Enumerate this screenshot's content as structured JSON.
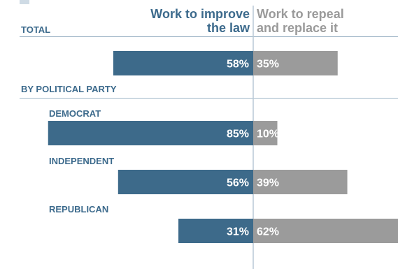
{
  "header": {
    "improve_label_line1": "Work to improve",
    "improve_label_line2": "the law",
    "repeal_label_line1": "Work to repeal",
    "repeal_label_line2": "and replace it"
  },
  "sections": {
    "total": "TOTAL",
    "party": "BY POLITICAL PARTY"
  },
  "colors": {
    "improve": "#3d6a8a",
    "repeal": "#9b9b9b",
    "label_blue": "#3c6a8c",
    "divider": "#b9c9d6"
  },
  "chart_data": {
    "type": "bar",
    "orientation": "horizontal-diverging",
    "categories": [
      "TOTAL",
      "DEMOCRAT",
      "INDEPENDENT",
      "REPUBLICAN"
    ],
    "series": [
      {
        "name": "Work to improve the law",
        "values": [
          58,
          85,
          56,
          31
        ]
      },
      {
        "name": "Work to repeal and replace it",
        "values": [
          35,
          10,
          39,
          62
        ]
      }
    ],
    "value_labels": {
      "improve": [
        "58%",
        "85%",
        "56%",
        "31%"
      ],
      "repeal": [
        "35%",
        "10%",
        "39%",
        "62%"
      ]
    },
    "unit": "%",
    "xlim": [
      0,
      100
    ],
    "grid": false,
    "legend": "top column headers"
  }
}
